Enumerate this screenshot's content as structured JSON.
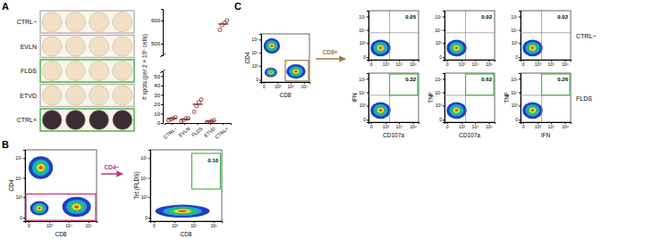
{
  "panel_labels": [
    "A",
    "B",
    "C"
  ],
  "wells": {
    "rows": [
      {
        "label": "CTRL−",
        "fill": "#f2e0c6",
        "border": "#b8b8b8"
      },
      {
        "label": "EVLN",
        "fill": "#f2e0c6",
        "border": "#b8b8b8"
      },
      {
        "label": "FLDS",
        "fill": "#f2e0c6",
        "border": "#45b649"
      },
      {
        "label": "ETVD",
        "fill": "#f2e0c6",
        "border": "#b8b8b8"
      },
      {
        "label": "CTRL+",
        "fill": "#3b2b33",
        "border": "#45b649"
      }
    ]
  },
  "chart_data": {
    "type": "scatter",
    "y_label": "# spots (per 2 × 10⁵ cells)",
    "categories": [
      "CTRL−",
      "EVLN",
      "FLDS",
      "ETVD",
      "CTRL+"
    ],
    "values": [
      [
        3,
        4,
        5,
        6
      ],
      [
        2,
        3,
        5,
        5
      ],
      [
        12,
        18,
        22,
        25
      ],
      [
        1,
        1,
        2,
        3
      ],
      [
        560,
        580,
        590,
        600
      ]
    ],
    "medians": [
      5,
      4,
      20,
      2,
      585
    ],
    "ylim": [
      0,
      55
    ],
    "yticks": [
      0,
      10,
      20,
      30,
      40,
      50
    ],
    "y2lim": [
      450,
      650
    ],
    "y2ticks": [
      500,
      600
    ],
    "color": "#8a3030",
    "marker": "circle"
  },
  "flow": {
    "range": [
      -50,
      262144
    ],
    "ticks": [
      {
        "value": 0,
        "label": "0"
      },
      {
        "value": 1000,
        "label": "10³"
      },
      {
        "value": 10000,
        "label": "10⁴"
      },
      {
        "value": 100000,
        "label": "10⁵"
      }
    ],
    "panel_b": {
      "x_label": "CD8",
      "y_label": "CD4",
      "gate_label": "CD4−",
      "gate_color": "#c2307c",
      "tet_x_label": "CD8",
      "tet_y_label": "Tet (FLDS)",
      "tet_gate": {
        "value": 0.1,
        "label": "0.10"
      },
      "tet_gate_color": "#45b649"
    },
    "panel_c": {
      "x_label": "CD8",
      "y_label": "CD4",
      "gate_label": "CD8+",
      "gate_color": "#a07840",
      "plots": [
        {
          "x_label": "CD107a",
          "y_label": "IFN"
        },
        {
          "x_label": "CD107a",
          "y_label": "TNF"
        },
        {
          "x_label": "IFN",
          "y_label": "TNF"
        }
      ],
      "rows": [
        {
          "label": "CTRL−",
          "values": [
            0.05,
            0.02,
            0.02
          ]
        },
        {
          "label": "FLDS",
          "values": [
            0.32,
            0.62,
            0.26
          ],
          "gate_color": "#45b649"
        }
      ]
    }
  }
}
